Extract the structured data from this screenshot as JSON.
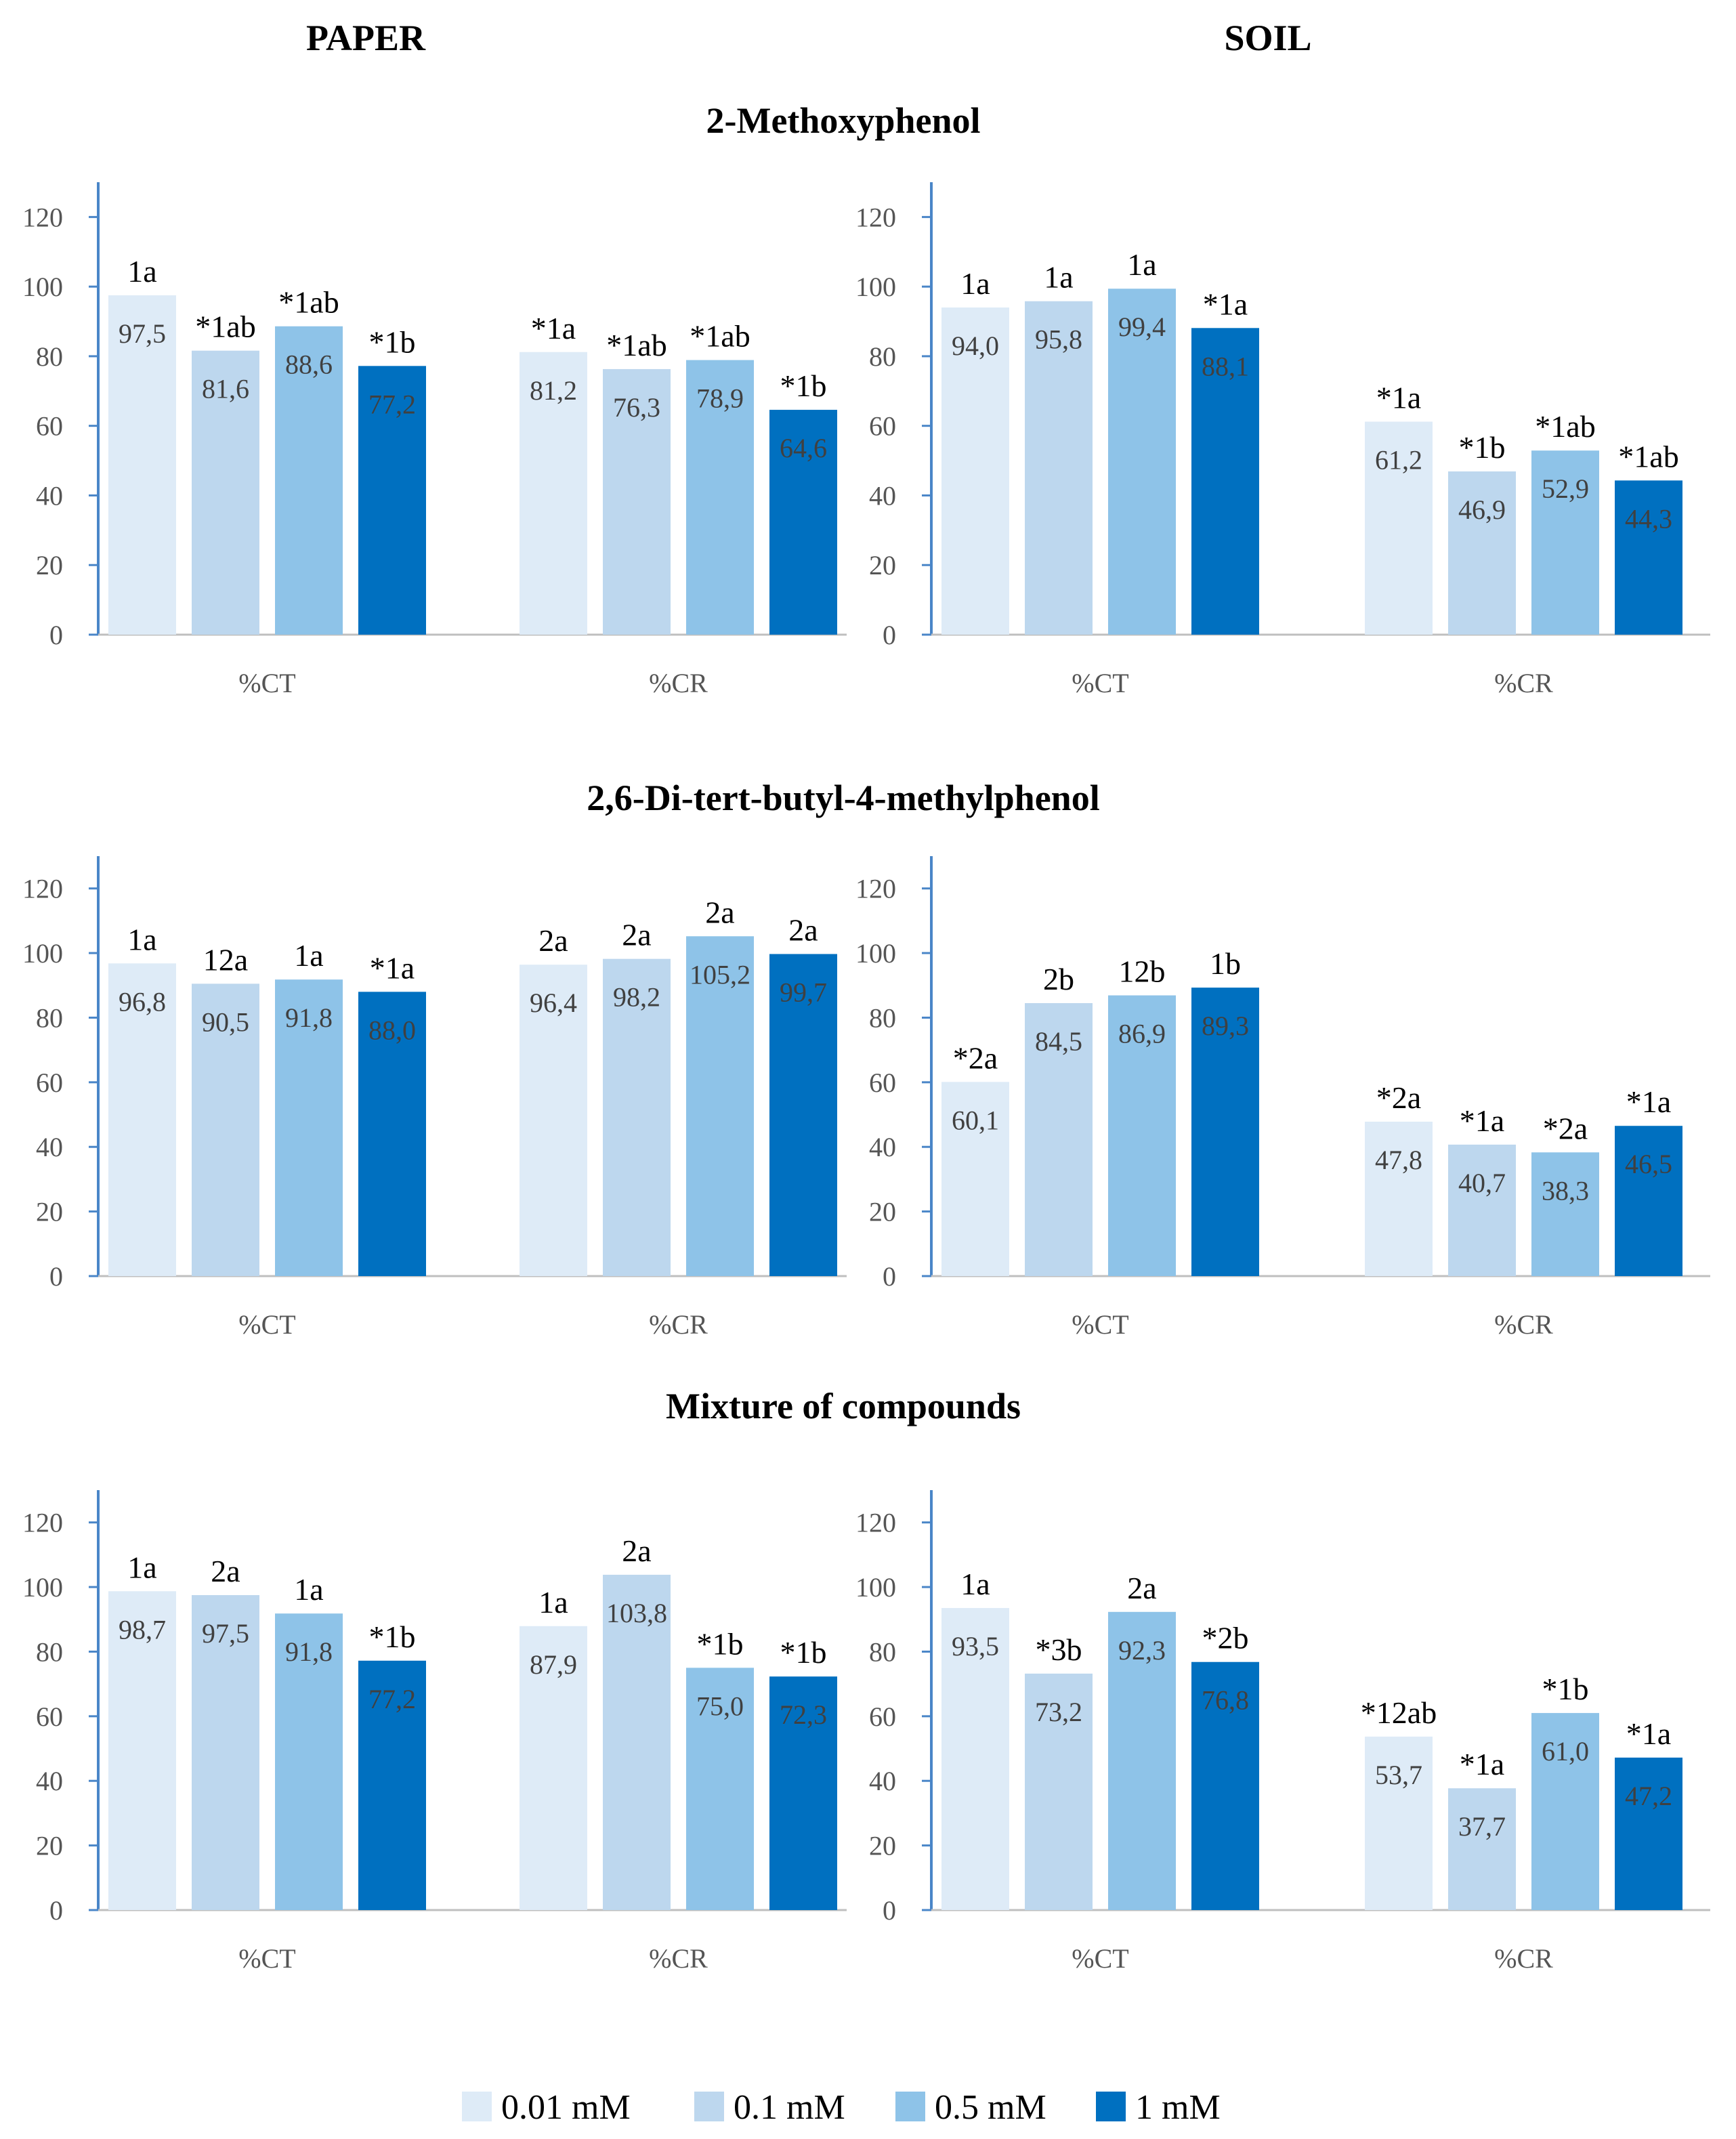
{
  "headers": {
    "left": "PAPER",
    "right": "SOIL"
  },
  "legend": [
    {
      "label": "0.01 mM",
      "color": "#DEEBF7"
    },
    {
      "label": "0.1 mM",
      "color": "#BDD7EE"
    },
    {
      "label": "0.5 mM",
      "color": "#8EC3E8"
    },
    {
      "label": "1 mM",
      "color": "#0070C0"
    }
  ],
  "chart_data": [
    {
      "type": "bar",
      "section": "2-Methoxyphenol",
      "panel": "PAPER",
      "categories": [
        "%CT",
        "%CR"
      ],
      "ylim": [
        0,
        130
      ],
      "yticks": [
        0,
        20,
        40,
        60,
        80,
        100,
        120
      ],
      "series": [
        {
          "name": "0.01 mM",
          "values": [
            97.5,
            81.2
          ],
          "labels": [
            "97,5",
            "81,2"
          ],
          "annotations": [
            "1a",
            "*1a"
          ]
        },
        {
          "name": "0.1 mM",
          "values": [
            81.6,
            76.3
          ],
          "labels": [
            "81,6",
            "76,3"
          ],
          "annotations": [
            "*1ab",
            "*1ab"
          ]
        },
        {
          "name": "0.5 mM",
          "values": [
            88.6,
            78.9
          ],
          "labels": [
            "88,6",
            "78,9"
          ],
          "annotations": [
            "*1ab",
            "*1ab"
          ]
        },
        {
          "name": "1 mM",
          "values": [
            77.2,
            64.6
          ],
          "labels": [
            "77,2",
            "64,6"
          ],
          "annotations": [
            "*1b",
            "*1b"
          ]
        }
      ]
    },
    {
      "type": "bar",
      "section": "2-Methoxyphenol",
      "panel": "SOIL",
      "categories": [
        "%CT",
        "%CR"
      ],
      "ylim": [
        0,
        130
      ],
      "yticks": [
        0,
        20,
        40,
        60,
        80,
        100,
        120
      ],
      "series": [
        {
          "name": "0.01 mM",
          "values": [
            94.0,
            61.2
          ],
          "labels": [
            "94,0",
            "61,2"
          ],
          "annotations": [
            "1a",
            "*1a"
          ]
        },
        {
          "name": "0.1 mM",
          "values": [
            95.8,
            46.9
          ],
          "labels": [
            "95,8",
            "46,9"
          ],
          "annotations": [
            "1a",
            "*1b"
          ]
        },
        {
          "name": "0.5 mM",
          "values": [
            99.4,
            52.9
          ],
          "labels": [
            "99,4",
            "52,9"
          ],
          "annotations": [
            "1a",
            "*1ab"
          ]
        },
        {
          "name": "1 mM",
          "values": [
            88.1,
            44.3
          ],
          "labels": [
            "88,1",
            "44,3"
          ],
          "annotations": [
            "*1a",
            "*1ab"
          ]
        }
      ]
    },
    {
      "type": "bar",
      "section": "2,6-Di-tert-butyl-4-methylphenol",
      "panel": "PAPER",
      "categories": [
        "%CT",
        "%CR"
      ],
      "ylim": [
        0,
        130
      ],
      "yticks": [
        0,
        20,
        40,
        60,
        80,
        100,
        120
      ],
      "series": [
        {
          "name": "0.01 mM",
          "values": [
            96.8,
            96.4
          ],
          "labels": [
            "96,8",
            "96,4"
          ],
          "annotations": [
            "1a",
            "2a"
          ]
        },
        {
          "name": "0.1 mM",
          "values": [
            90.5,
            98.2
          ],
          "labels": [
            "90,5",
            "98,2"
          ],
          "annotations": [
            "12a",
            "2a"
          ]
        },
        {
          "name": "0.5 mM",
          "values": [
            91.8,
            105.2
          ],
          "labels": [
            "91,8",
            "105,2"
          ],
          "annotations": [
            "1a",
            "2a"
          ]
        },
        {
          "name": "1 mM",
          "values": [
            88.0,
            99.7
          ],
          "labels": [
            "88,0",
            "99,7"
          ],
          "annotations": [
            "*1a",
            "2a"
          ]
        }
      ]
    },
    {
      "type": "bar",
      "section": "2,6-Di-tert-butyl-4-methylphenol",
      "panel": "SOIL",
      "categories": [
        "%CT",
        "%CR"
      ],
      "ylim": [
        0,
        130
      ],
      "yticks": [
        0,
        20,
        40,
        60,
        80,
        100,
        120
      ],
      "series": [
        {
          "name": "0.01 mM",
          "values": [
            60.1,
            47.8
          ],
          "labels": [
            "60,1",
            "47,8"
          ],
          "annotations": [
            "*2a",
            "*2a"
          ]
        },
        {
          "name": "0.1 mM",
          "values": [
            84.5,
            40.7
          ],
          "labels": [
            "84,5",
            "40,7"
          ],
          "annotations": [
            "2b",
            "*1a"
          ]
        },
        {
          "name": "0.5 mM",
          "values": [
            86.9,
            38.3
          ],
          "labels": [
            "86,9",
            "38,3"
          ],
          "annotations": [
            "12b",
            "*2a"
          ]
        },
        {
          "name": "1 mM",
          "values": [
            89.3,
            46.5
          ],
          "labels": [
            "89,3",
            "46,5"
          ],
          "annotations": [
            "1b",
            "*1a"
          ]
        }
      ]
    },
    {
      "type": "bar",
      "section": "Mixture of compounds",
      "panel": "PAPER",
      "categories": [
        "%CT",
        "%CR"
      ],
      "ylim": [
        0,
        130
      ],
      "yticks": [
        0,
        20,
        40,
        60,
        80,
        100,
        120
      ],
      "series": [
        {
          "name": "0.01 mM",
          "values": [
            98.7,
            87.9
          ],
          "labels": [
            "98,7",
            "87,9"
          ],
          "annotations": [
            "1a",
            "1a"
          ]
        },
        {
          "name": "0.1 mM",
          "values": [
            97.5,
            103.8
          ],
          "labels": [
            "97,5",
            "103,8"
          ],
          "annotations": [
            "2a",
            "2a"
          ]
        },
        {
          "name": "0.5 mM",
          "values": [
            91.8,
            75.0
          ],
          "labels": [
            "91,8",
            "75,0"
          ],
          "annotations": [
            "1a",
            "*1b"
          ]
        },
        {
          "name": "1 mM",
          "values": [
            77.2,
            72.3
          ],
          "labels": [
            "77,2",
            "72,3"
          ],
          "annotations": [
            "*1b",
            "*1b"
          ]
        }
      ]
    },
    {
      "type": "bar",
      "section": "Mixture of compounds",
      "panel": "SOIL",
      "categories": [
        "%CT",
        "%CR"
      ],
      "ylim": [
        0,
        130
      ],
      "yticks": [
        0,
        20,
        40,
        60,
        80,
        100,
        120
      ],
      "series": [
        {
          "name": "0.01 mM",
          "values": [
            93.5,
            53.7
          ],
          "labels": [
            "93,5",
            "53,7"
          ],
          "annotations": [
            "1a",
            "*12ab"
          ]
        },
        {
          "name": "0.1 mM",
          "values": [
            73.2,
            37.7
          ],
          "labels": [
            "73,2",
            "37,7"
          ],
          "annotations": [
            "*3b",
            "*1a"
          ]
        },
        {
          "name": "0.5 mM",
          "values": [
            92.3,
            61.0
          ],
          "labels": [
            "92,3",
            "61,0"
          ],
          "annotations": [
            "2a",
            "*1b"
          ]
        },
        {
          "name": "1 mM",
          "values": [
            76.8,
            47.2
          ],
          "labels": [
            "76,8",
            "47,2"
          ],
          "annotations": [
            "*2b",
            "*1a"
          ]
        }
      ]
    }
  ]
}
